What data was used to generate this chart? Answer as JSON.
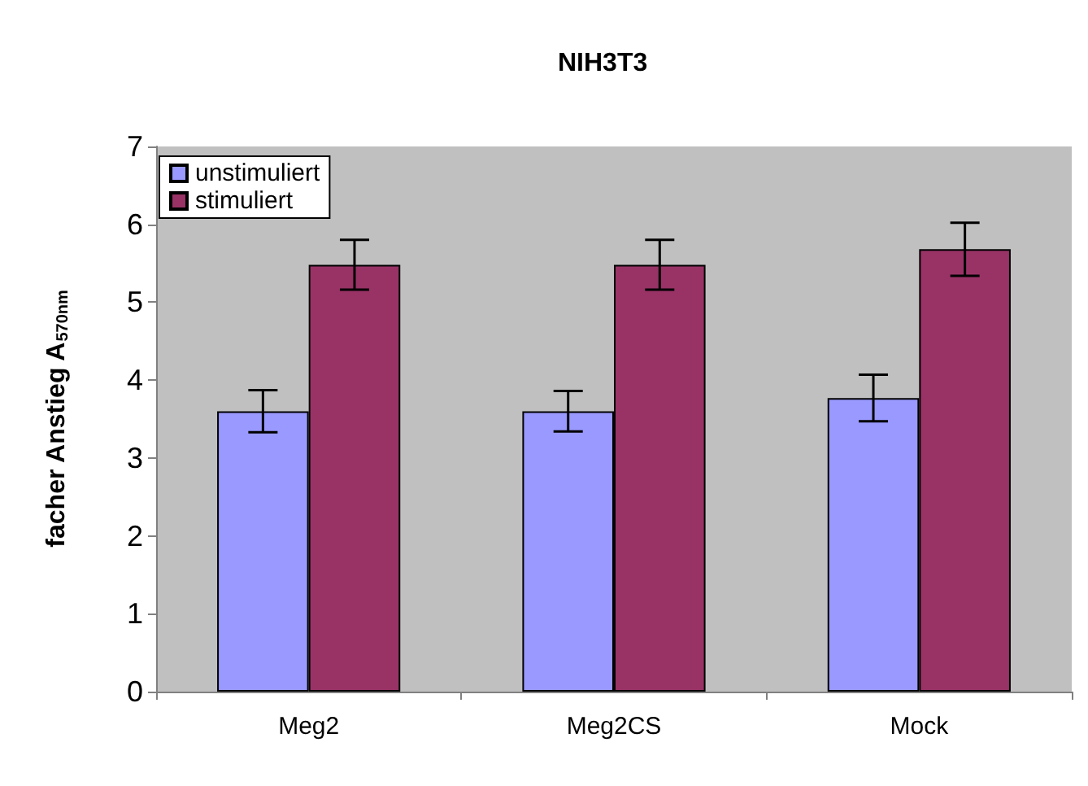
{
  "chart_data": {
    "type": "bar",
    "title": "NIH3T3",
    "ylabel": "facher Anstieg A$_{570nm}$",
    "categories": [
      "Meg2",
      "Meg2CS",
      "Mock"
    ],
    "series": [
      {
        "name": "unstimuliert",
        "color": "#9999ff",
        "values": [
          3.6,
          3.6,
          3.77
        ],
        "errors": [
          0.27,
          0.26,
          0.3
        ]
      },
      {
        "name": "stimuliert",
        "color": "#993366",
        "values": [
          5.48,
          5.48,
          5.68
        ],
        "errors": [
          0.32,
          0.32,
          0.34
        ]
      }
    ],
    "ylim": [
      0,
      7
    ],
    "yticks": [
      0,
      1,
      2,
      3,
      4,
      5,
      6,
      7
    ],
    "grid": false,
    "legend": "top left"
  }
}
